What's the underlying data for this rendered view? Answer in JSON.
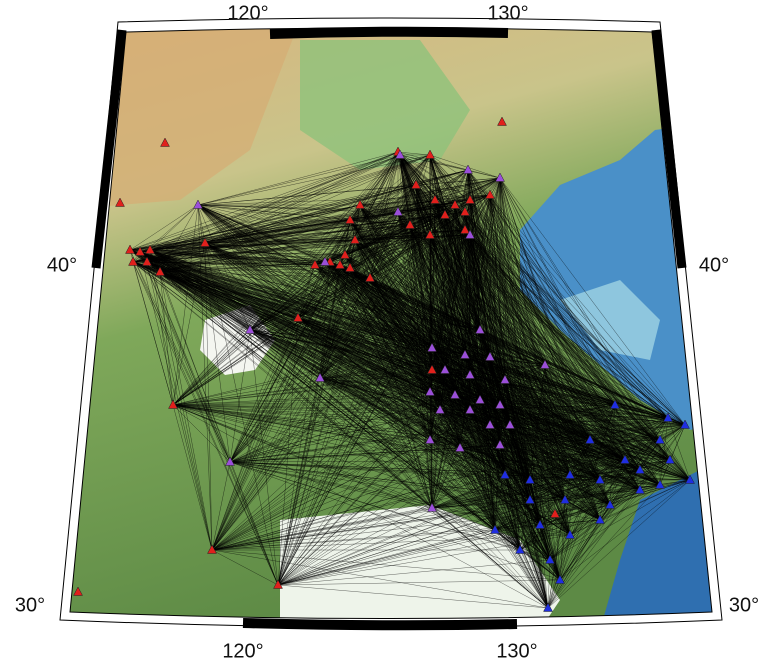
{
  "top_labels": [
    "120°",
    "130°"
  ],
  "bottom_labels": [
    "120°",
    "130°"
  ],
  "left_labels": [
    "40°",
    "30°"
  ],
  "right_labels": [
    "40°",
    "30°"
  ]
}
